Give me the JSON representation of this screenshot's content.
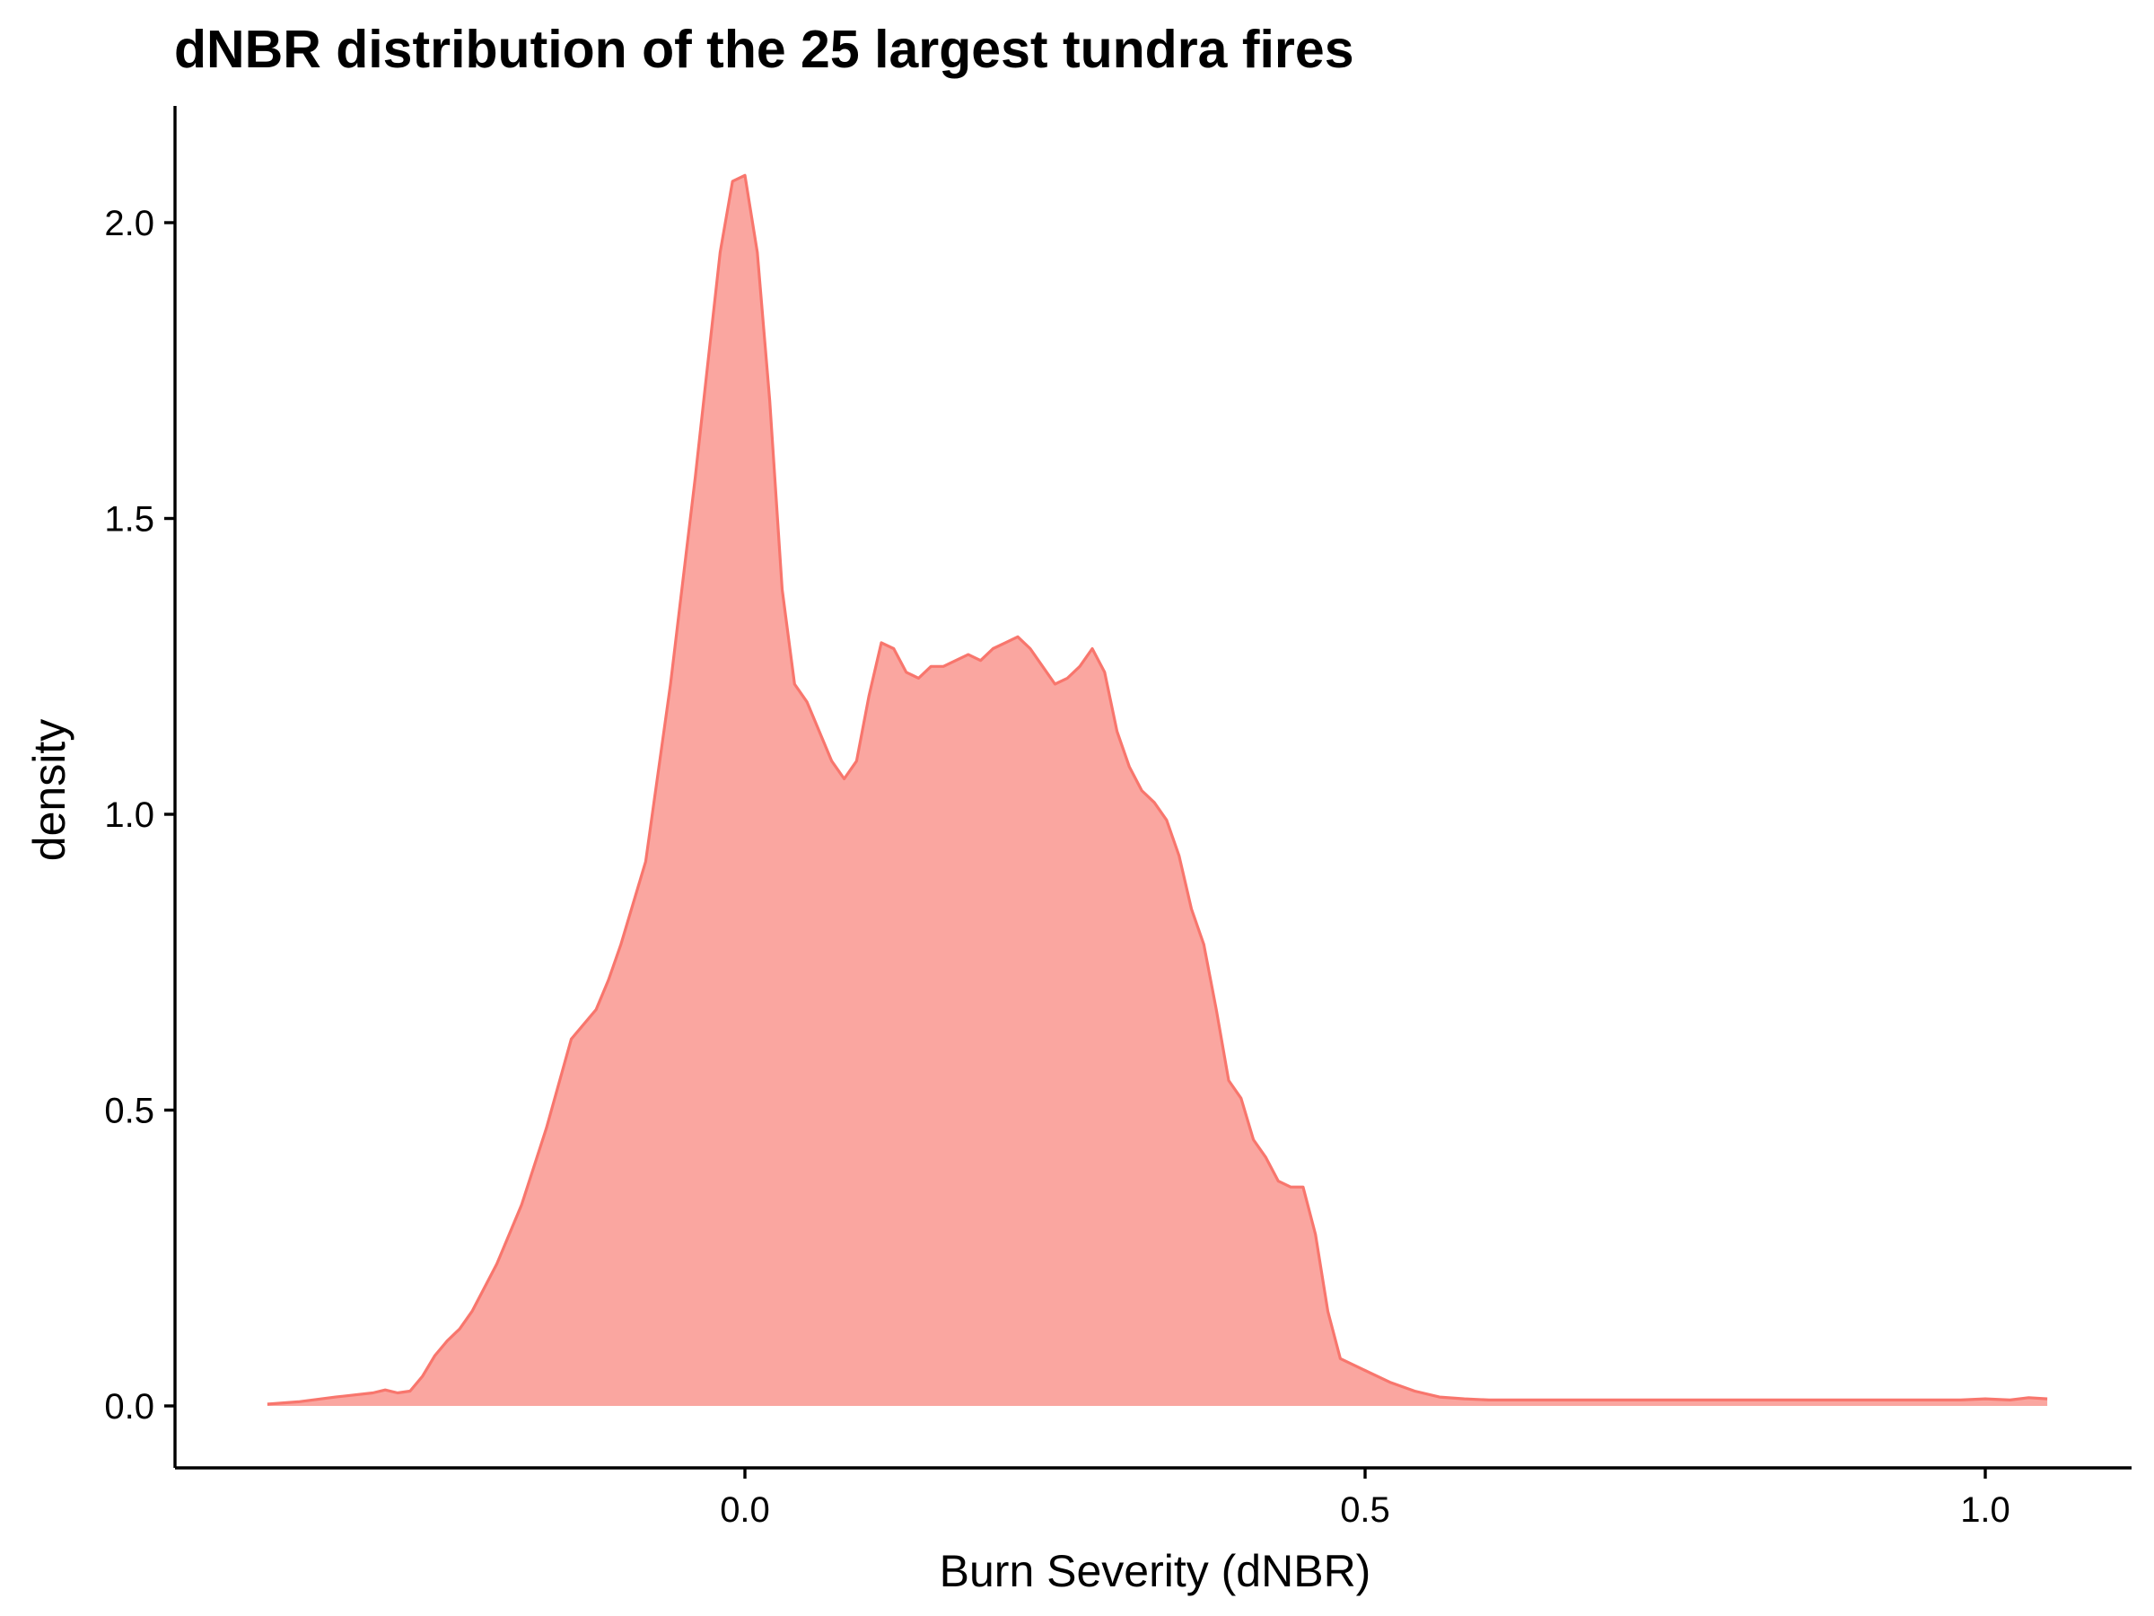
{
  "chart_data": {
    "type": "area",
    "title": "dNBR distribution of the 25 largest tundra fires",
    "xlabel": "Burn Severity (dNBR)",
    "ylabel": "density",
    "xlim": [
      -0.46,
      1.12
    ],
    "ylim": [
      -0.1,
      2.2
    ],
    "x_ticks": [
      0.0,
      0.5,
      1.0
    ],
    "x_tick_labels": [
      "0.0",
      "0.5",
      "1.0"
    ],
    "y_ticks": [
      0.0,
      0.5,
      1.0,
      1.5,
      2.0
    ],
    "y_tick_labels": [
      "0.0",
      "0.5",
      "1.0",
      "1.5",
      "2.0"
    ],
    "grid": false,
    "legend": "none",
    "fill_color": "#F8766D",
    "fill_opacity": 0.65,
    "line_color": "#F8766D",
    "series": [
      {
        "x": [
          -0.385,
          -0.36,
          -0.33,
          -0.3,
          -0.29,
          -0.28,
          -0.27,
          -0.26,
          -0.25,
          -0.24,
          -0.23,
          -0.22,
          -0.2,
          -0.18,
          -0.16,
          -0.14,
          -0.12,
          -0.11,
          -0.1,
          -0.08,
          -0.06,
          -0.04,
          -0.03,
          -0.02,
          -0.01,
          0.0,
          0.01,
          0.02,
          0.03,
          0.04,
          0.05,
          0.06,
          0.07,
          0.08,
          0.09,
          0.1,
          0.11,
          0.12,
          0.13,
          0.14,
          0.15,
          0.16,
          0.17,
          0.18,
          0.19,
          0.2,
          0.21,
          0.22,
          0.23,
          0.24,
          0.25,
          0.26,
          0.27,
          0.28,
          0.29,
          0.3,
          0.31,
          0.32,
          0.33,
          0.34,
          0.35,
          0.36,
          0.37,
          0.38,
          0.39,
          0.4,
          0.41,
          0.42,
          0.43,
          0.44,
          0.45,
          0.46,
          0.47,
          0.48,
          0.5,
          0.52,
          0.54,
          0.56,
          0.58,
          0.6,
          0.62,
          0.64,
          0.66,
          0.68,
          0.7,
          0.72,
          0.74,
          0.75,
          0.76,
          0.78,
          0.8,
          0.82,
          0.84,
          0.86,
          0.88,
          0.9,
          0.92,
          0.94,
          0.96,
          0.98,
          1.0,
          1.02,
          1.035,
          1.05
        ],
        "y": [
          0.003,
          0.007,
          0.015,
          0.022,
          0.027,
          0.022,
          0.025,
          0.05,
          0.085,
          0.11,
          0.13,
          0.16,
          0.24,
          0.34,
          0.47,
          0.62,
          0.67,
          0.72,
          0.78,
          0.92,
          1.22,
          1.57,
          1.76,
          1.95,
          2.07,
          2.08,
          1.95,
          1.7,
          1.38,
          1.22,
          1.19,
          1.14,
          1.09,
          1.06,
          1.09,
          1.2,
          1.29,
          1.28,
          1.24,
          1.23,
          1.25,
          1.25,
          1.26,
          1.27,
          1.26,
          1.28,
          1.29,
          1.3,
          1.28,
          1.25,
          1.22,
          1.23,
          1.25,
          1.28,
          1.24,
          1.14,
          1.08,
          1.04,
          1.02,
          0.99,
          0.93,
          0.84,
          0.78,
          0.67,
          0.55,
          0.52,
          0.45,
          0.42,
          0.38,
          0.37,
          0.37,
          0.29,
          0.16,
          0.08,
          0.06,
          0.04,
          0.025,
          0.015,
          0.012,
          0.01,
          0.01,
          0.01,
          0.01,
          0.01,
          0.01,
          0.01,
          0.01,
          0.01,
          0.01,
          0.01,
          0.01,
          0.01,
          0.01,
          0.01,
          0.01,
          0.01,
          0.01,
          0.01,
          0.01,
          0.01,
          0.012,
          0.01,
          0.014,
          0.012
        ]
      }
    ]
  }
}
